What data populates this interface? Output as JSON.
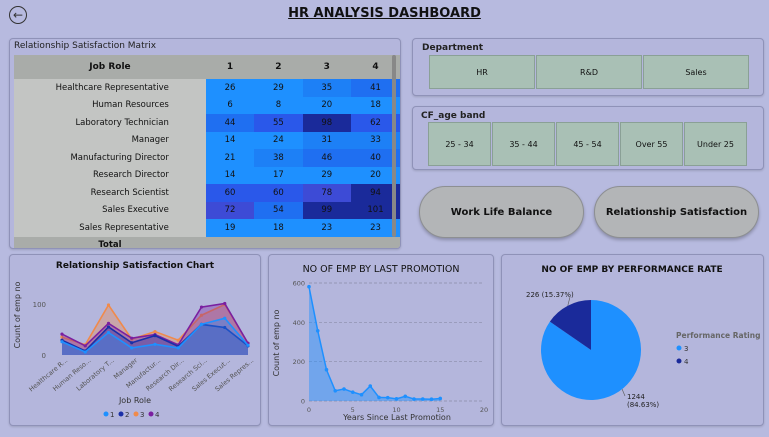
{
  "header": {
    "title": "HR ANALYSIS DASHBOARD",
    "back_icon": "back-arrow-icon"
  },
  "matrix": {
    "title": "Relationship Satisfaction Matrix",
    "col_header": "Job Role",
    "columns": [
      "1",
      "2",
      "3",
      "4"
    ],
    "rows": [
      {
        "role": "Healthcare Representative",
        "values": [
          "26",
          "29",
          "35",
          "41"
        ]
      },
      {
        "role": "Human Resources",
        "values": [
          "6",
          "8",
          "20",
          "18"
        ]
      },
      {
        "role": "Laboratory Technician",
        "values": [
          "44",
          "55",
          "98",
          "62"
        ]
      },
      {
        "role": "Manager",
        "values": [
          "14",
          "24",
          "31",
          "33"
        ]
      },
      {
        "role": "Manufacturing Director",
        "values": [
          "21",
          "38",
          "46",
          "40"
        ]
      },
      {
        "role": "Research Director",
        "values": [
          "14",
          "17",
          "29",
          "20"
        ]
      },
      {
        "role": "Research Scientist",
        "values": [
          "60",
          "60",
          "78",
          "94"
        ]
      },
      {
        "role": "Sales Executive",
        "values": [
          "72",
          "54",
          "99",
          "101"
        ]
      },
      {
        "role": "Sales Representative",
        "values": [
          "19",
          "18",
          "23",
          "23"
        ]
      }
    ],
    "total_label": "Total"
  },
  "department": {
    "title": "Department",
    "options": [
      "HR",
      "R&D",
      "Sales"
    ]
  },
  "age_band": {
    "title": "CF_age band",
    "options": [
      "25 - 34",
      "35 - 44",
      "45 - 54",
      "Over 55",
      "Under 25"
    ]
  },
  "buttons": {
    "work_life": "Work Life Balance",
    "relationship": "Relationship Satisfaction"
  },
  "chart1": {
    "title": "Relationship Satisfaction Chart",
    "ylabel": "Count of emp no",
    "xlabel": "Job Role",
    "yticks": [
      "0",
      "100"
    ],
    "categories": [
      "Healthcare R...",
      "Human Reso...",
      "Laboratory T...",
      "Manager",
      "Manufactur...",
      "Research Dir...",
      "Research Sci...",
      "Sales Execut...",
      "Sales Repres..."
    ],
    "legend": [
      "1",
      "2",
      "3",
      "4"
    ]
  },
  "chart2": {
    "title": "NO OF EMP BY LAST PROMOTION",
    "ylabel": "Count of emp no",
    "xlabel": "Years Since Last Promotion",
    "yticks": [
      "0",
      "200",
      "400",
      "600"
    ],
    "xticks": [
      "0",
      "5",
      "10",
      "15",
      "20"
    ]
  },
  "chart3": {
    "title": "NO OF EMP BY PERFORMANCE RATE",
    "legend_title": "Performance Rating",
    "legend": [
      "3",
      "4"
    ],
    "label_small_value": "226 (15.37%)",
    "label_big_value": "1244",
    "label_big_pct": "(84.63%)"
  },
  "chart_data": [
    {
      "type": "area",
      "title": "Relationship Satisfaction Chart",
      "xlabel": "Job Role",
      "ylabel": "Count of emp no",
      "categories": [
        "Healthcare Representative",
        "Human Resources",
        "Laboratory Technician",
        "Manager",
        "Manufacturing Director",
        "Research Director",
        "Research Scientist",
        "Sales Executive",
        "Sales Representative"
      ],
      "series": [
        {
          "name": "1",
          "values": [
            26,
            6,
            44,
            14,
            21,
            14,
            60,
            72,
            19
          ],
          "color": "#1e90ff"
        },
        {
          "name": "2",
          "values": [
            29,
            8,
            55,
            24,
            38,
            17,
            60,
            54,
            18
          ],
          "color": "#1a2fa8"
        },
        {
          "name": "3",
          "values": [
            35,
            20,
            98,
            31,
            46,
            29,
            78,
            99,
            23
          ],
          "color": "#f08a4b"
        },
        {
          "name": "4",
          "values": [
            41,
            18,
            62,
            33,
            40,
            20,
            94,
            101,
            23
          ],
          "color": "#7a1fa0"
        }
      ]
    },
    {
      "type": "area",
      "title": "NO OF EMP BY LAST PROMOTION",
      "xlabel": "Years Since Last Promotion",
      "ylabel": "Count of emp no",
      "x": [
        0,
        1,
        2,
        3,
        4,
        5,
        6,
        7,
        8,
        9,
        10,
        11,
        12,
        13,
        14,
        15
      ],
      "values": [
        581,
        357,
        159,
        52,
        61,
        45,
        32,
        76,
        18,
        17,
        11,
        24,
        10,
        10,
        9,
        13
      ],
      "ylim": [
        0,
        600
      ],
      "xlim": [
        0,
        20
      ]
    },
    {
      "type": "pie",
      "title": "NO OF EMP BY PERFORMANCE RATE",
      "categories": [
        "3",
        "4"
      ],
      "values": [
        1244,
        226
      ],
      "colors": [
        "#1e90ff",
        "#1a2a9a"
      ]
    }
  ]
}
